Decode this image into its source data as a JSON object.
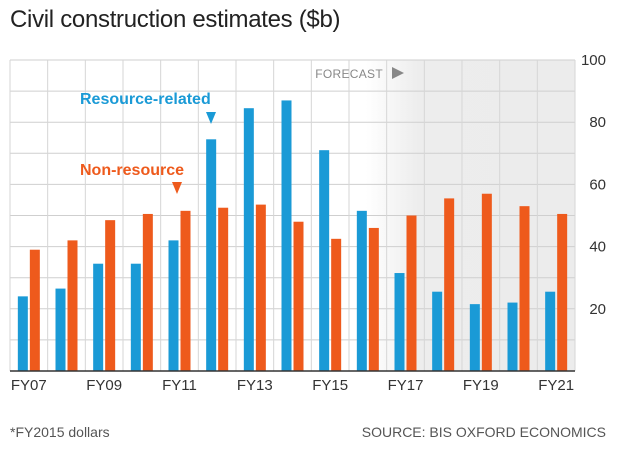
{
  "chart_data": {
    "type": "bar",
    "title": "Civil construction estimates ($b)",
    "categories": [
      "FY07",
      "FY08",
      "FY09",
      "FY10",
      "FY11",
      "FY12",
      "FY13",
      "FY14",
      "FY15",
      "FY16",
      "FY17",
      "FY18",
      "FY19",
      "FY20",
      "FY21"
    ],
    "x_tick_labels": [
      "FY07",
      "FY09",
      "FY11",
      "FY13",
      "FY15",
      "FY17",
      "FY19",
      "FY21"
    ],
    "series": [
      {
        "name": "Resource-related",
        "color": "#1a9ad6",
        "values": [
          24,
          26.5,
          34.5,
          34.5,
          42,
          74.5,
          84.5,
          87,
          71,
          51.5,
          31.5,
          25.5,
          21.5,
          22,
          25.5
        ]
      },
      {
        "name": "Non-resource",
        "color": "#ee5a1c",
        "values": [
          39,
          42,
          48.5,
          50.5,
          51.5,
          52.5,
          53.5,
          48,
          42.5,
          46,
          50,
          55.5,
          57,
          53,
          50.5
        ]
      }
    ],
    "ylim": [
      0,
      100
    ],
    "y_ticks": [
      20,
      40,
      60,
      80,
      100
    ],
    "grid": true,
    "forecast_label": "FORECAST",
    "forecast_start_index": 10,
    "footnote": "*FY2015 dollars",
    "source": "SOURCE: BIS OXFORD ECONOMICS"
  }
}
